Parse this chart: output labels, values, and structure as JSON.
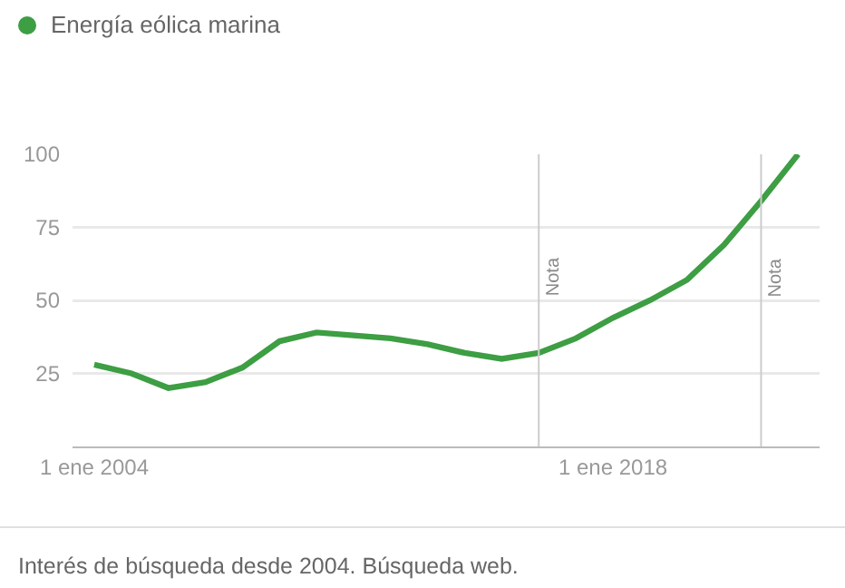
{
  "chart_data": {
    "type": "line",
    "x": [
      "2004",
      "2005",
      "2006",
      "2007",
      "2008",
      "2009",
      "2010",
      "2011",
      "2012",
      "2013",
      "2014",
      "2015",
      "2016",
      "2017",
      "2018",
      "2019",
      "2020",
      "2021",
      "2022",
      "2023"
    ],
    "series": [
      {
        "name": "Energía eólica marina",
        "color": "#3d9e43",
        "values": [
          28,
          25,
          20,
          22,
          27,
          36,
          39,
          38,
          37,
          35,
          32,
          30,
          32,
          37,
          44,
          50,
          57,
          69,
          84,
          100
        ]
      }
    ],
    "xlim": [
      "2003-06",
      "2023-08"
    ],
    "xticks": [
      {
        "value": "2004",
        "label": "1 ene 2004"
      },
      {
        "value": "2018",
        "label": "1 ene 2018"
      }
    ],
    "ylim": [
      0,
      100
    ],
    "yticks": [
      25,
      50,
      75,
      100
    ],
    "grid": "y",
    "legend": "top left",
    "marker": "none",
    "line_style": "solid",
    "ref_lines": [
      {
        "axis": "x",
        "value": "2016",
        "label": "Nota",
        "color": "#cccccc"
      },
      {
        "axis": "x",
        "value": "2022",
        "label": "Nota",
        "color": "#cccccc"
      }
    ],
    "annotations": [
      "Interés de búsqueda desde 2004. Búsqueda web."
    ]
  }
}
